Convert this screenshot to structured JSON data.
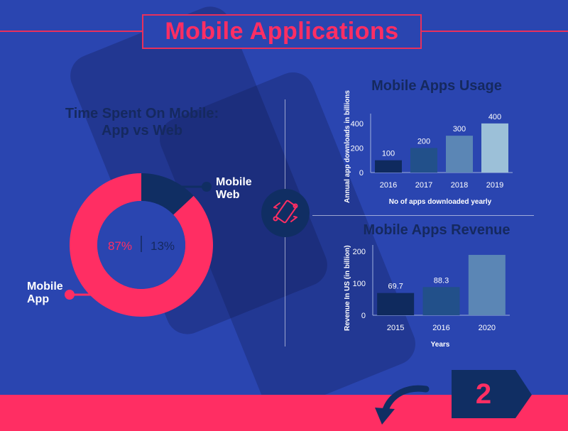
{
  "title": "Mobile Applications",
  "colors": {
    "background": "#2a45b0",
    "accent": "#ff2e63",
    "navy": "#102e63",
    "title_text": "#15295f",
    "bar_shades": [
      "#0f2a5e",
      "#22508a",
      "#5b86b5",
      "#9cc0d8"
    ]
  },
  "donut": {
    "title_line1": "Time Spent On Mobile:",
    "title_line2": "App vs Web",
    "center_app_text": "87%",
    "center_web_text": "13%",
    "label_web_line1": "Mobile",
    "label_web_line2": "Web",
    "label_app_line1": "Mobile",
    "label_app_line2": "App"
  },
  "center_icon": "phone-apps-icon",
  "page_number": "2",
  "footer_icon": "curved-arrow-icon",
  "chart_data": [
    {
      "type": "pie",
      "title": "Time Spent On Mobile: App vs Web",
      "categories": [
        "Mobile App",
        "Mobile Web"
      ],
      "values": [
        87,
        13
      ],
      "unit": "%",
      "colors": [
        "#ff2e63",
        "#102e63"
      ]
    },
    {
      "type": "bar",
      "title": "Mobile Apps Usage",
      "categories": [
        "2016",
        "2017",
        "2018",
        "2019"
      ],
      "values": [
        100,
        200,
        300,
        400
      ],
      "xlabel": "No of apps downloaded yearly",
      "ylabel": "Annual app downloads in billions",
      "yticks": [
        0,
        200,
        400
      ],
      "ylim": [
        0,
        480
      ],
      "data_labels": [
        "100",
        "200",
        "300",
        "400"
      ],
      "grid": false
    },
    {
      "type": "bar",
      "title": "Mobile Apps Revenue",
      "categories": [
        "2015",
        "2016",
        "2020"
      ],
      "values": [
        69.7,
        88.3,
        189
      ],
      "xlabel": "Years",
      "ylabel": "Revenue In US (in billion)",
      "yticks": [
        0,
        100,
        200
      ],
      "ylim": [
        0,
        220
      ],
      "data_labels": [
        "69.7",
        "88.3",
        ""
      ],
      "grid": false
    }
  ]
}
